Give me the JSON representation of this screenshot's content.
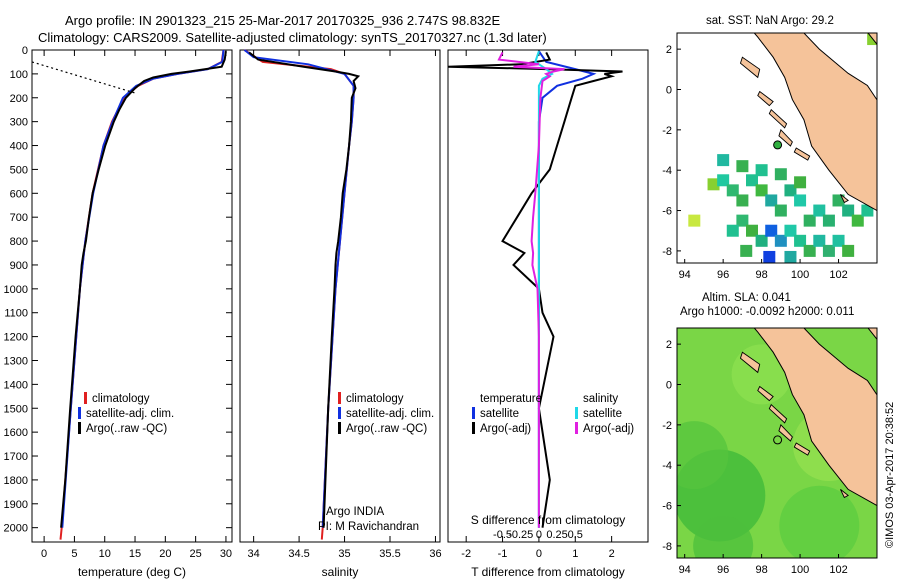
{
  "header": {
    "line1": "Argo profile: IN 2901323_215 25-Mar-2017 20170325_936 2.747S 98.832E",
    "line2": "Climatology: CARS2009. Satellite-adjusted climatology: synTS_20170327.nc (1.3d later)"
  },
  "credit": "©IMOS 03-Apr-2017 20:38:52",
  "colors": {
    "climatology": "#e02020",
    "satellite": "#1030e0",
    "argo": "#000000",
    "satellite_salinity": "#20d8e8",
    "argo_salinity_adj": "#e020e0",
    "land": "#f5c39a",
    "ocean_bg": "#ffffff"
  },
  "chart_data": [
    {
      "type": "line",
      "panel": "temperature",
      "xlabel": "temperature (deg C)",
      "ylabel": "",
      "xlim": [
        -2,
        31
      ],
      "ylim": [
        2060,
        0
      ],
      "xticks": [
        "0",
        "5",
        "10",
        "15",
        "20",
        "25",
        "30"
      ],
      "yticks": [
        "0",
        "100",
        "200",
        "300",
        "400",
        "500",
        "600",
        "700",
        "800",
        "900",
        "1000",
        "1100",
        "1200",
        "1300",
        "1400",
        "1500",
        "1600",
        "1700",
        "1800",
        "1900",
        "2000"
      ],
      "legend": [
        "climatology",
        "satellite-adj. clim.",
        "Argo(..raw -QC)"
      ],
      "series": [
        {
          "name": "climatology",
          "y": [
            0,
            50,
            80,
            100,
            120,
            150,
            200,
            300,
            400,
            600,
            800,
            1000,
            1500,
            2000,
            2050
          ],
          "values": [
            29.6,
            29.3,
            27.0,
            22.0,
            18.0,
            15.5,
            13.2,
            11.2,
            9.8,
            8.0,
            6.8,
            5.9,
            4.4,
            2.9,
            2.7
          ]
        },
        {
          "name": "satellite-adj. clim.",
          "y": [
            0,
            50,
            80,
            100,
            120,
            150,
            200,
            300,
            400,
            600,
            800,
            1000,
            1500,
            2000
          ],
          "values": [
            29.6,
            29.4,
            27.0,
            22.0,
            18.0,
            15.2,
            13.0,
            11.3,
            9.8,
            8.1,
            6.8,
            5.9,
            4.4,
            3.0
          ]
        },
        {
          "name": "Argo(..raw -QC)",
          "y": [
            5,
            40,
            70,
            90,
            100,
            115,
            130,
            160,
            200,
            250,
            300,
            400,
            500,
            600,
            700,
            800,
            850,
            900,
            1000,
            1200,
            1500,
            1800,
            2000
          ],
          "values": [
            30.0,
            29.8,
            29.3,
            24.0,
            21.0,
            18.0,
            16.5,
            15.0,
            13.5,
            12.4,
            11.5,
            10.1,
            9.0,
            8.0,
            7.4,
            6.9,
            6.5,
            6.2,
            5.9,
            5.2,
            4.3,
            3.5,
            2.8
          ]
        }
      ],
      "annotation": {
        "type": "dotted-line",
        "from": [
          -2,
          50
        ],
        "to": [
          15,
          180
        ]
      }
    },
    {
      "type": "line",
      "panel": "salinity",
      "xlabel": "salinity",
      "ylabel": "",
      "xlim": [
        33.85,
        36.05
      ],
      "ylim": [
        2060,
        0
      ],
      "xticks": [
        "34",
        "34.5",
        "35",
        "35.5",
        "36"
      ],
      "legend": [
        "climatology",
        "satellite-adj. clim.",
        "Argo(..raw -QC)"
      ],
      "footnote": [
        "Argo INDIA",
        "PI: M Ravichandran"
      ],
      "series": [
        {
          "name": "climatology",
          "y": [
            0,
            50,
            80,
            100,
            150,
            200,
            300,
            400,
            600,
            800,
            1000,
            1500,
            2000,
            2050
          ],
          "values": [
            33.9,
            34.1,
            34.85,
            35.0,
            35.1,
            35.1,
            35.08,
            35.05,
            35.0,
            34.95,
            34.9,
            34.82,
            34.76,
            34.75
          ]
        },
        {
          "name": "satellite-adj. clim.",
          "y": [
            0,
            30,
            60,
            100,
            150,
            200,
            300,
            400,
            600,
            800,
            1000,
            1500,
            2000
          ],
          "values": [
            33.9,
            34.0,
            34.6,
            35.0,
            35.1,
            35.1,
            35.08,
            35.05,
            35.0,
            34.95,
            34.9,
            34.82,
            34.76
          ]
        },
        {
          "name": "Argo(..raw -QC)",
          "y": [
            10,
            40,
            70,
            90,
            100,
            110,
            130,
            160,
            200,
            300,
            400,
            500,
            600,
            700,
            800,
            850,
            900,
            1000,
            1200,
            1500,
            2000
          ],
          "values": [
            33.95,
            34.05,
            34.55,
            34.9,
            35.05,
            35.15,
            35.1,
            35.12,
            35.08,
            35.07,
            35.05,
            35.02,
            34.98,
            34.96,
            34.93,
            34.91,
            34.9,
            34.89,
            34.86,
            34.82,
            34.77
          ]
        }
      ]
    },
    {
      "type": "line",
      "panel": "difference",
      "xlabel": "T difference from climatology",
      "xlabel_top": "S difference from climatology",
      "xlim": [
        -2.5,
        3.0
      ],
      "ylim": [
        2060,
        0
      ],
      "xticks": [
        "-2",
        "-1",
        "0",
        "1",
        "2"
      ],
      "xticks_top": [
        "-0.5",
        "-0.25",
        "0",
        "0.25",
        "0.5"
      ],
      "legend": {
        "temperature_header": "temperature",
        "salinity_header": "salinity",
        "temperature": [
          "satellite",
          "Argo(-adj)"
        ],
        "salinity": [
          "satellite",
          "Argo(-adj)"
        ]
      },
      "series": [
        {
          "name": "T satellite",
          "y": [
            5,
            50,
            80,
            100,
            120,
            150,
            200,
            300,
            400,
            600,
            800,
            1000,
            1500,
            2000
          ],
          "values": [
            0.0,
            0.2,
            1.0,
            1.5,
            1.2,
            0.5,
            0.1,
            0.0,
            0.0,
            0.0,
            0.0,
            0.0,
            0.0,
            0.0
          ]
        },
        {
          "name": "T Argo(-adj)",
          "y": [
            10,
            40,
            60,
            70,
            80,
            90,
            100,
            110,
            130,
            150,
            200,
            250,
            300,
            400,
            500,
            600,
            700,
            750,
            800,
            850,
            900,
            1000,
            1100,
            1200,
            1500,
            1800,
            2000
          ],
          "values": [
            0.2,
            0.3,
            -0.5,
            -2.5,
            0.2,
            2.3,
            1.8,
            2.0,
            1.5,
            1.0,
            0.9,
            0.8,
            0.7,
            0.5,
            0.3,
            -0.2,
            -0.6,
            -0.8,
            -1.0,
            -0.4,
            -0.7,
            0.0,
            0.1,
            0.4,
            0.0,
            0.3,
            0.1
          ]
        },
        {
          "name": "S satellite",
          "y": [
            5,
            50,
            80,
            100,
            120,
            150,
            200,
            400,
            800,
            1200,
            1500,
            2000
          ],
          "values": [
            0.0,
            -0.05,
            0.1,
            0.18,
            0.05,
            0.0,
            0.0,
            0.0,
            0.0,
            0.0,
            0.0,
            0.0
          ]
        },
        {
          "name": "S Argo(-adj)",
          "y": [
            10,
            40,
            60,
            70,
            80,
            90,
            100,
            110,
            130,
            200,
            400,
            600,
            700,
            800,
            850,
            900,
            1000,
            1200,
            1500,
            2000
          ],
          "values": [
            -0.5,
            -0.55,
            0.0,
            -0.35,
            0.35,
            0.2,
            0.1,
            0.15,
            0.05,
            0.02,
            0.0,
            -0.05,
            -0.08,
            -0.1,
            -0.08,
            -0.09,
            -0.02,
            0.0,
            0.0,
            0.0
          ]
        }
      ]
    },
    {
      "type": "heatmap",
      "panel": "sst-map",
      "title": "sat. SST: NaN Argo: 29.2",
      "xlim": [
        93.6,
        104.0
      ],
      "ylim": [
        -8.6,
        2.8
      ],
      "xticks": [
        "94",
        "96",
        "98",
        "100",
        "102"
      ],
      "yticks": [
        "2",
        "0",
        "-2",
        "-4",
        "-6",
        "-8"
      ],
      "argo_position": {
        "lon": 98.832,
        "lat": -2.747
      }
    },
    {
      "type": "heatmap",
      "panel": "sla-map",
      "title": "Altim. SLA: 0.041",
      "subtitle": "Argo h1000: -0.0092 h2000: 0.011",
      "xlim": [
        93.6,
        104.0
      ],
      "ylim": [
        -8.6,
        2.8
      ],
      "xticks": [
        "94",
        "96",
        "98",
        "100",
        "102"
      ],
      "yticks": [
        "2",
        "0",
        "-2",
        "-4",
        "-6",
        "-8"
      ],
      "argo_position": {
        "lon": 98.832,
        "lat": -2.747
      }
    }
  ]
}
